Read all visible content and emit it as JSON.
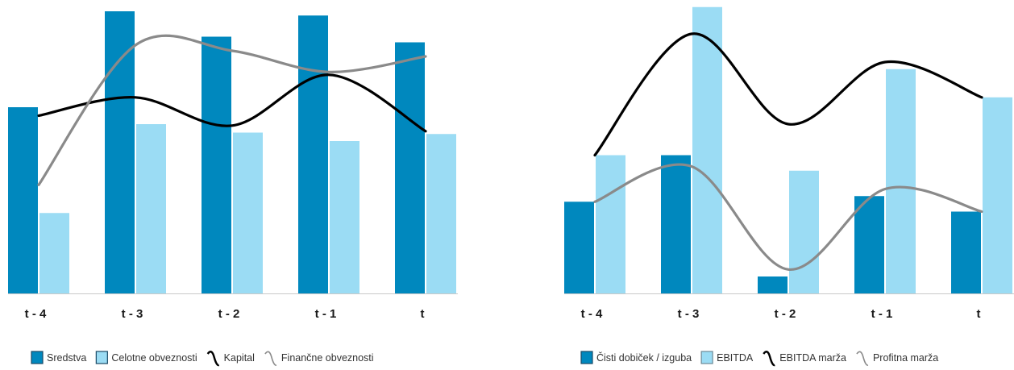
{
  "colors": {
    "bar_dark": "#0088BE",
    "bar_light": "#9BDCF4",
    "line_dark": "#000000",
    "line_gray": "#8A8A8A",
    "axis": "#C9C9C9"
  },
  "chart_data": [
    {
      "type": "bar",
      "categories": [
        "t - 4",
        "t - 3",
        "t - 2",
        "t - 1",
        "t"
      ],
      "ylim": [
        0,
        100
      ],
      "grid": false,
      "legend_position": "bottom",
      "series": [
        {
          "name": "Sredstva",
          "kind": "bar",
          "color": "#0088BE",
          "values": [
            66.0,
            100.0,
            91.0,
            98.5,
            89.0
          ]
        },
        {
          "name": "Celotne obveznosti",
          "kind": "bar",
          "color": "#9BDCF4",
          "values": [
            28.5,
            60.0,
            57.0,
            54.0,
            56.5
          ]
        },
        {
          "name": "Kapital",
          "kind": "line",
          "color": "#000000",
          "values": [
            63.0,
            69.5,
            59.5,
            77.5,
            57.5
          ]
        },
        {
          "name": "Finančne obveznosti",
          "kind": "line",
          "color": "#8A8A8A",
          "values": [
            38.5,
            88.0,
            86.0,
            78.5,
            84.0
          ]
        }
      ]
    },
    {
      "type": "bar",
      "categories": [
        "t - 4",
        "t - 3",
        "t - 2",
        "t - 1",
        "t"
      ],
      "ylim": [
        0,
        100
      ],
      "grid": false,
      "legend_position": "bottom",
      "series": [
        {
          "name": "Čisti dobiček / izguba",
          "kind": "bar",
          "color": "#0088BE",
          "values": [
            32.5,
            49.0,
            6.0,
            34.5,
            29.0
          ]
        },
        {
          "name": "EBITDA",
          "kind": "bar",
          "color": "#9BDCF4",
          "values": [
            49.0,
            101.5,
            43.5,
            79.5,
            69.5
          ]
        },
        {
          "name": "EBITDA marža",
          "kind": "line",
          "color": "#000000",
          "values": [
            49.0,
            92.0,
            60.0,
            82.0,
            69.5
          ]
        },
        {
          "name": "Profitna marža",
          "kind": "line",
          "color": "#8A8A8A",
          "values": [
            32.5,
            45.0,
            8.5,
            37.0,
            29.0
          ]
        }
      ]
    }
  ]
}
